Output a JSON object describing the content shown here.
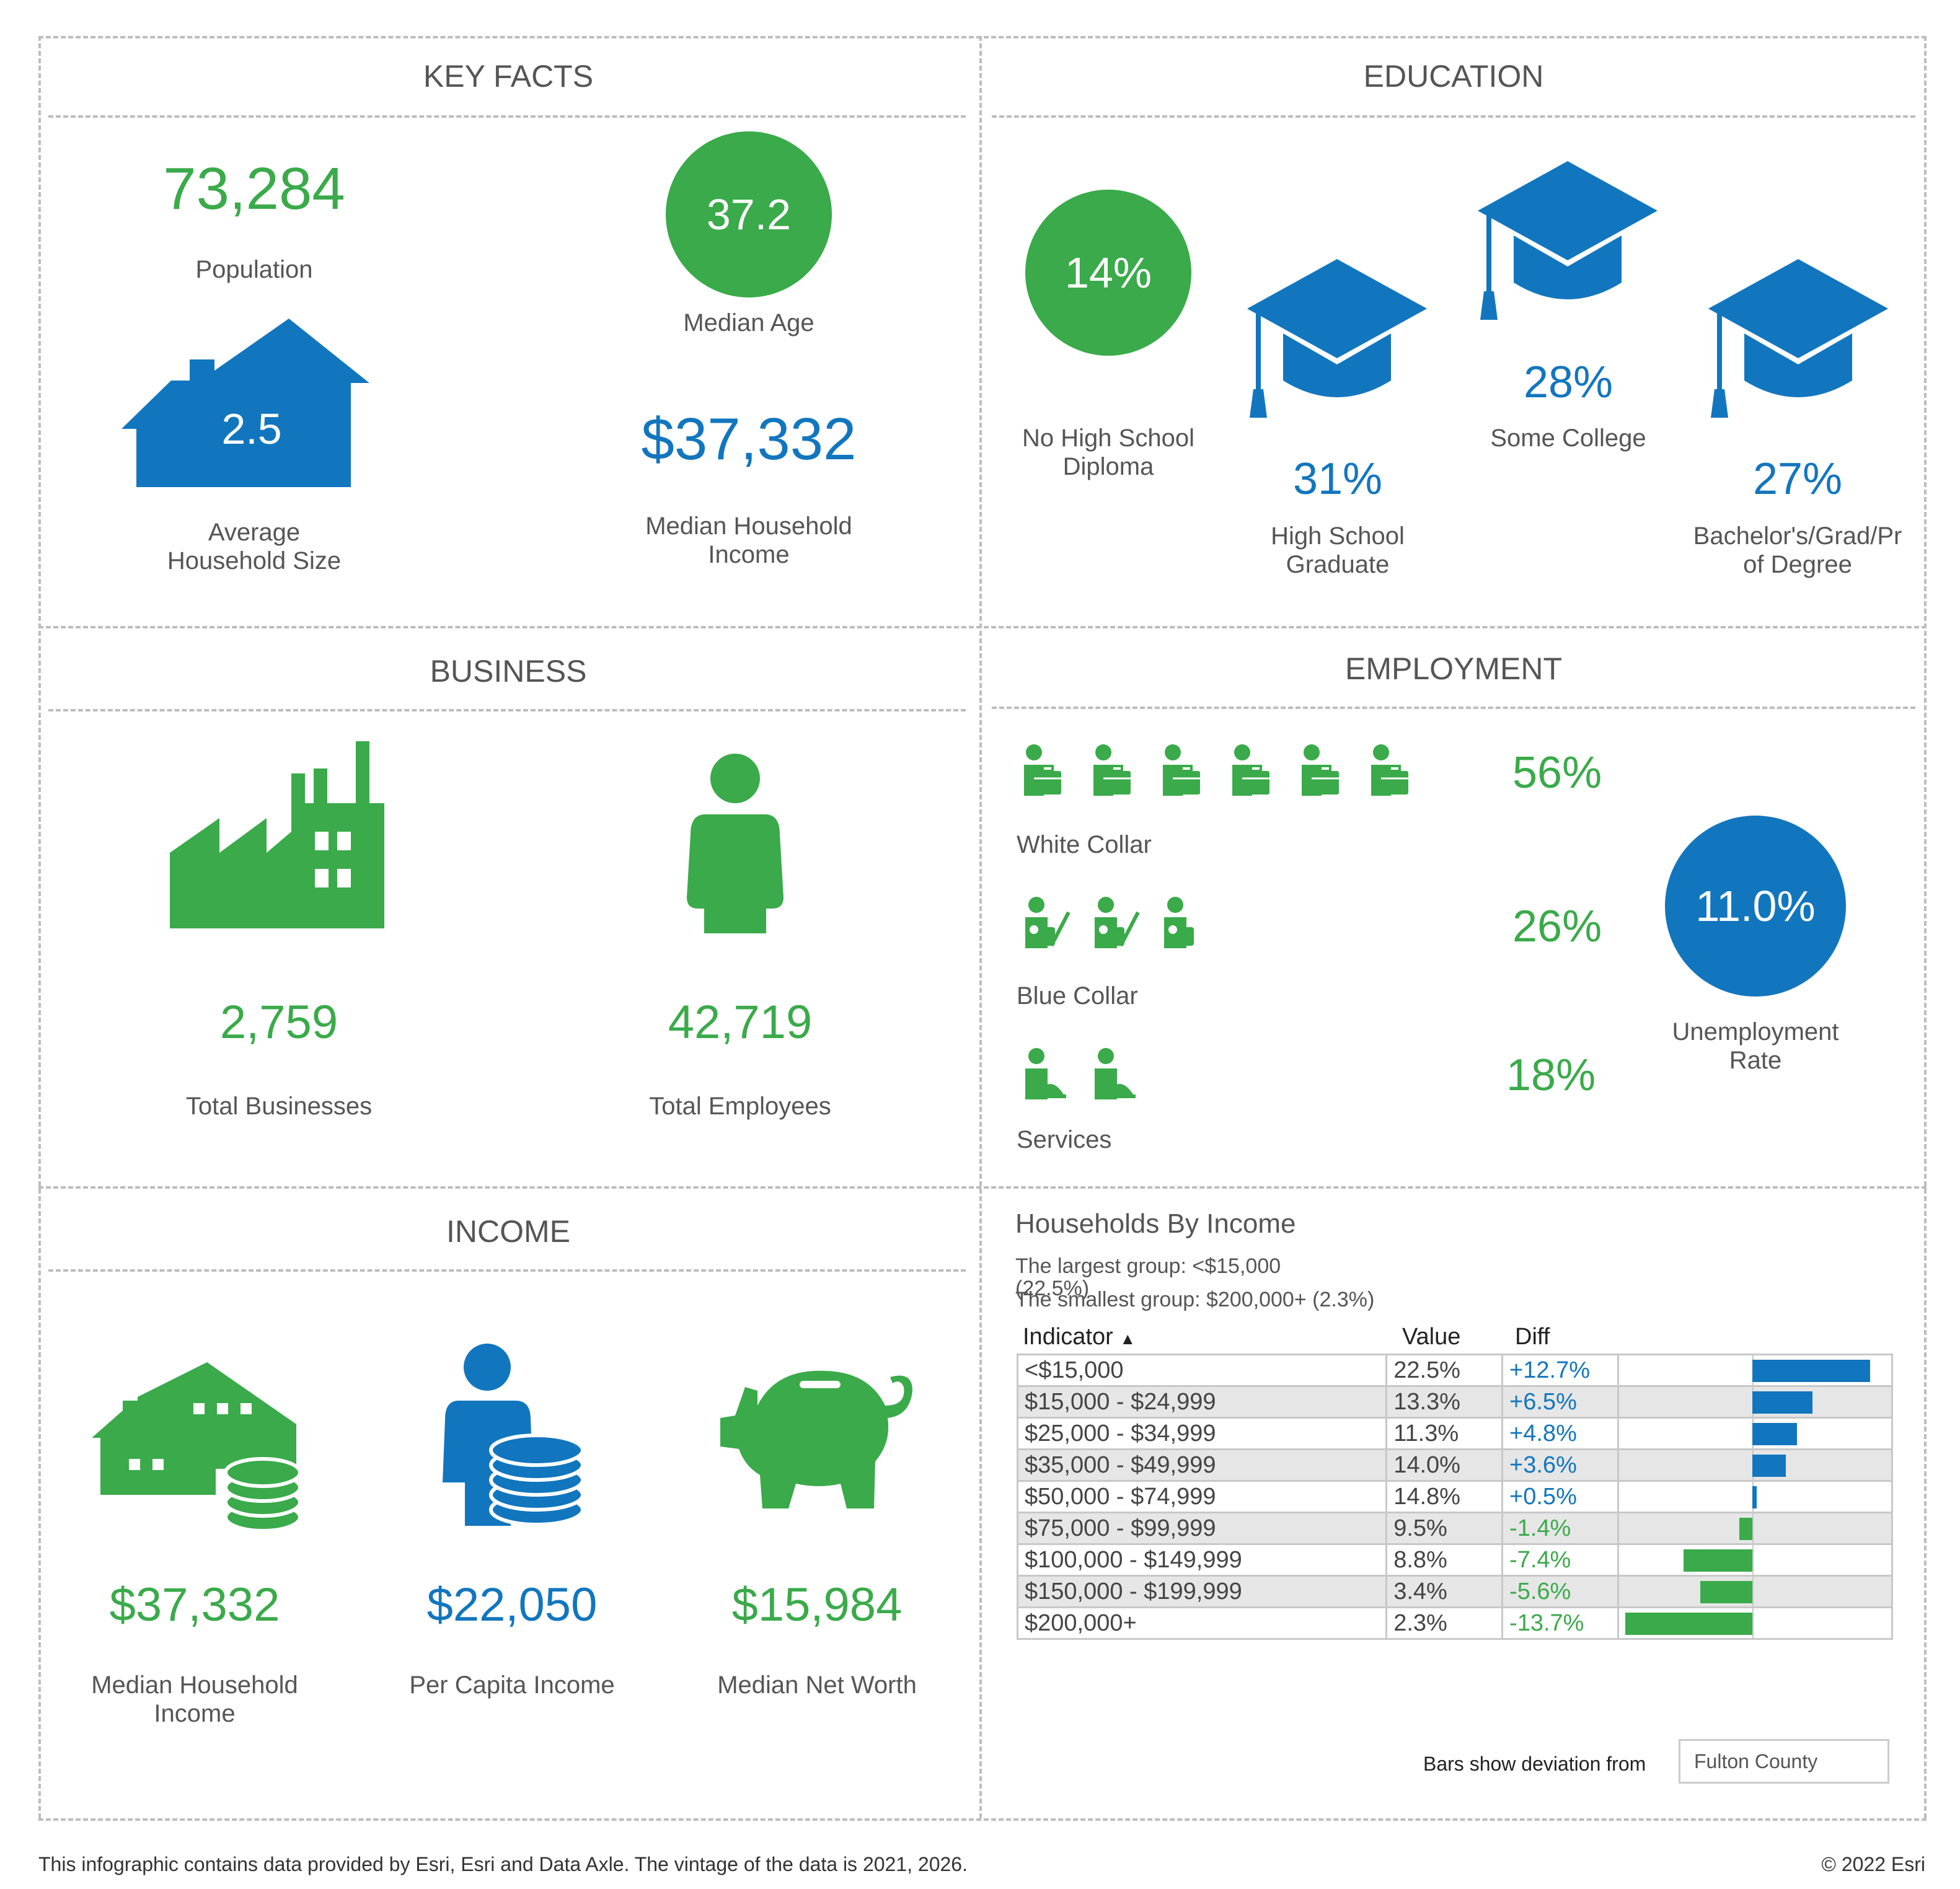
{
  "key_facts": {
    "title": "KEY FACTS",
    "population": {
      "value": "73,284",
      "label": "Population"
    },
    "median_age": {
      "value": "37.2",
      "label": "Median Age"
    },
    "household_size": {
      "value": "2.5",
      "label1": "Average",
      "label2": "Household Size"
    },
    "median_income": {
      "value": "$37,332",
      "label1": "Median Household",
      "label2": "Income"
    }
  },
  "education": {
    "title": "EDUCATION",
    "no_hs": {
      "value": "14%",
      "label1": "No High School",
      "label2": "Diploma"
    },
    "hs_grad": {
      "value": "31%",
      "label1": "High School",
      "label2": "Graduate"
    },
    "some_college": {
      "value": "28%",
      "label": "Some College"
    },
    "bachelors": {
      "value": "27%",
      "label1": "Bachelor's/Grad/Pr",
      "label2": "of Degree"
    }
  },
  "business": {
    "title": "BUSINESS",
    "total_businesses": {
      "value": "2,759",
      "label": "Total Businesses"
    },
    "total_employees": {
      "value": "42,719",
      "label": "Total Employees"
    }
  },
  "employment": {
    "title": "EMPLOYMENT",
    "white_collar": {
      "value": "56%",
      "label": "White Collar",
      "icon_count": 6
    },
    "blue_collar": {
      "value": "26%",
      "label": "Blue Collar",
      "icon_count": 3
    },
    "services": {
      "value": "18%",
      "label": "Services",
      "icon_count": 2
    },
    "unemployment": {
      "value": "11.0%",
      "label1": "Unemployment",
      "label2": "Rate"
    }
  },
  "income": {
    "title": "INCOME",
    "median_household": {
      "value": "$37,332",
      "label1": "Median Household",
      "label2": "Income"
    },
    "per_capita": {
      "value": "$22,050",
      "label": "Per Capita Income"
    },
    "net_worth": {
      "value": "$15,984",
      "label": "Median Net Worth"
    }
  },
  "households_by_income": {
    "title": "Households By Income",
    "largest_line1": "The largest group: <$15,000",
    "largest_line2": "(22.5%)",
    "smallest": "The smallest group: $200,000+ (2.3%)",
    "headers": {
      "indicator": "Indicator",
      "sort": "▲",
      "value": "Value",
      "diff": "Diff"
    },
    "rows": [
      {
        "indicator": "<$15,000",
        "value": "22.5%",
        "diff": "+12.7%",
        "dev": 12.7
      },
      {
        "indicator": "$15,000 - $24,999",
        "value": "13.3%",
        "diff": "+6.5%",
        "dev": 6.5
      },
      {
        "indicator": "$25,000 - $34,999",
        "value": "11.3%",
        "diff": "+4.8%",
        "dev": 4.8
      },
      {
        "indicator": "$35,000 - $49,999",
        "value": "14.0%",
        "diff": "+3.6%",
        "dev": 3.6
      },
      {
        "indicator": "$50,000 - $74,999",
        "value": "14.8%",
        "diff": "+0.5%",
        "dev": 0.5
      },
      {
        "indicator": "$75,000 - $99,999",
        "value": "9.5%",
        "diff": "-1.4%",
        "dev": -1.4
      },
      {
        "indicator": "$100,000 - $149,999",
        "value": "8.8%",
        "diff": "-7.4%",
        "dev": -7.4
      },
      {
        "indicator": "$150,000 - $199,999",
        "value": "3.4%",
        "diff": "-5.6%",
        "dev": -5.6
      },
      {
        "indicator": "$200,000+",
        "value": "2.3%",
        "diff": "-13.7%",
        "dev": -13.7
      }
    ],
    "deviation_label": "Bars show deviation from",
    "deviation_value": "Fulton County"
  },
  "colors": {
    "green": "#3aaa4a",
    "blue": "#1276be"
  },
  "footer": {
    "note": "This infographic contains data provided by Esri, Esri and Data Axle. The vintage of the data is 2021, 2026.",
    "copyright": "© 2022 Esri"
  }
}
